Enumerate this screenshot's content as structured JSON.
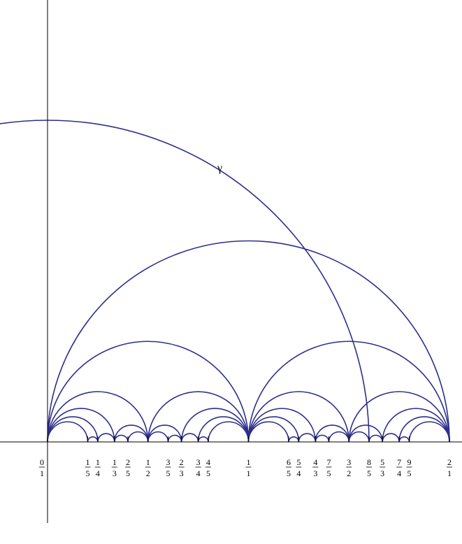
{
  "figure": {
    "gamma_label": "γ",
    "arc_color": "#2e2e8c",
    "gamma_arc": {
      "center_x": 0.0,
      "radius": 1.6
    }
  },
  "chart_data": {
    "type": "diagram",
    "description_kind": "Farey tessellation semicircles",
    "x_range": [
      -0.2,
      2.05
    ],
    "fractions": [
      {
        "num": "0",
        "den": "1",
        "value": 0.0
      },
      {
        "num": "1",
        "den": "5",
        "value": 0.2
      },
      {
        "num": "1",
        "den": "4",
        "value": 0.25
      },
      {
        "num": "1",
        "den": "3",
        "value": 0.3333
      },
      {
        "num": "2",
        "den": "5",
        "value": 0.4
      },
      {
        "num": "1",
        "den": "2",
        "value": 0.5
      },
      {
        "num": "3",
        "den": "5",
        "value": 0.6
      },
      {
        "num": "2",
        "den": "3",
        "value": 0.6667
      },
      {
        "num": "3",
        "den": "4",
        "value": 0.75
      },
      {
        "num": "4",
        "den": "5",
        "value": 0.8
      },
      {
        "num": "1",
        "den": "1",
        "value": 1.0
      },
      {
        "num": "6",
        "den": "5",
        "value": 1.2
      },
      {
        "num": "5",
        "den": "4",
        "value": 1.25
      },
      {
        "num": "4",
        "den": "3",
        "value": 1.3333
      },
      {
        "num": "7",
        "den": "5",
        "value": 1.4
      },
      {
        "num": "3",
        "den": "2",
        "value": 1.5
      },
      {
        "num": "8",
        "den": "5",
        "value": 1.6
      },
      {
        "num": "5",
        "den": "3",
        "value": 1.6667
      },
      {
        "num": "7",
        "den": "4",
        "value": 1.75
      },
      {
        "num": "9",
        "den": "5",
        "value": 1.8
      },
      {
        "num": "2",
        "den": "1",
        "value": 2.0
      }
    ],
    "arcs": [
      [
        0,
        2
      ],
      [
        0,
        1
      ],
      [
        1,
        2
      ],
      [
        0,
        0.5
      ],
      [
        0.5,
        1
      ],
      [
        1,
        1.5
      ],
      [
        1.5,
        2
      ],
      [
        0,
        0.3333
      ],
      [
        0.3333,
        0.5
      ],
      [
        0.5,
        0.6667
      ],
      [
        0.6667,
        1
      ],
      [
        1,
        1.3333
      ],
      [
        1.3333,
        1.5
      ],
      [
        1.5,
        1.6667
      ],
      [
        1.6667,
        2
      ],
      [
        0,
        0.25
      ],
      [
        0.25,
        0.3333
      ],
      [
        0.3333,
        0.4
      ],
      [
        0.4,
        0.5
      ],
      [
        0.5,
        0.6
      ],
      [
        0.6,
        0.6667
      ],
      [
        0.6667,
        0.75
      ],
      [
        0.75,
        1
      ],
      [
        1,
        1.25
      ],
      [
        1.25,
        1.3333
      ],
      [
        1.3333,
        1.4
      ],
      [
        1.4,
        1.5
      ],
      [
        1.5,
        1.6
      ],
      [
        1.6,
        1.6667
      ],
      [
        1.6667,
        1.75
      ],
      [
        1.75,
        2
      ],
      [
        0,
        0.2
      ],
      [
        0.2,
        0.25
      ],
      [
        0.75,
        0.8
      ],
      [
        0.8,
        1
      ],
      [
        1,
        1.2
      ],
      [
        1.2,
        1.25
      ],
      [
        1.75,
        1.8
      ],
      [
        1.8,
        2
      ]
    ]
  }
}
